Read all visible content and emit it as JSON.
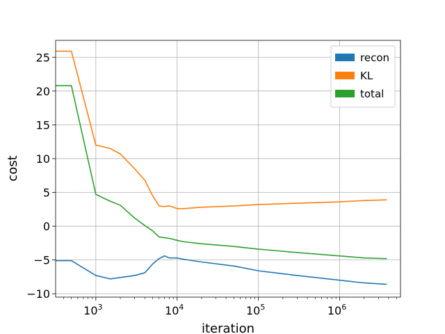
{
  "chart_data": {
    "type": "line",
    "title": "",
    "xlabel": "iteration",
    "ylabel": "cost",
    "xscale": "log",
    "xlim": [
      320,
      5600000
    ],
    "ylim": [
      -10.5,
      27.5
    ],
    "x_ticks": [
      {
        "value": 1000,
        "base": "10",
        "exp": "3"
      },
      {
        "value": 10000,
        "base": "10",
        "exp": "4"
      },
      {
        "value": 100000,
        "base": "10",
        "exp": "5"
      },
      {
        "value": 1000000,
        "base": "10",
        "exp": "6"
      }
    ],
    "y_ticks": [
      {
        "value": -10,
        "label": "−10"
      },
      {
        "value": -5,
        "label": "−5"
      },
      {
        "value": 0,
        "label": "0"
      },
      {
        "value": 5,
        "label": "5"
      },
      {
        "value": 10,
        "label": "10"
      },
      {
        "value": 15,
        "label": "15"
      },
      {
        "value": 20,
        "label": "20"
      },
      {
        "value": 25,
        "label": "25"
      }
    ],
    "grid": true,
    "legend_position": "top-right",
    "series": [
      {
        "name": "recon",
        "color": "#1f77b4",
        "x": [
          320,
          500,
          1000,
          1500,
          2000,
          3000,
          4000,
          5000,
          6000,
          7000,
          8000,
          10000,
          12000,
          20000,
          50000,
          100000,
          300000,
          1000000,
          2000000,
          3800000
        ],
        "y": [
          -5.1,
          -5.1,
          -7.3,
          -7.8,
          -7.6,
          -7.3,
          -6.9,
          -5.6,
          -4.8,
          -4.4,
          -4.7,
          -4.7,
          -4.9,
          -5.3,
          -5.9,
          -6.6,
          -7.3,
          -8.0,
          -8.4,
          -8.6
        ]
      },
      {
        "name": "KL",
        "color": "#ff7f0e",
        "x": [
          320,
          500,
          1000,
          1500,
          2000,
          3000,
          4000,
          5000,
          6000,
          7000,
          8000,
          10000,
          12000,
          20000,
          50000,
          100000,
          300000,
          1000000,
          2000000,
          3800000
        ],
        "y": [
          25.9,
          25.9,
          12.0,
          11.5,
          10.7,
          8.5,
          6.8,
          4.5,
          3.0,
          2.9,
          3.0,
          2.6,
          2.6,
          2.8,
          3.0,
          3.2,
          3.4,
          3.6,
          3.8,
          3.9
        ]
      },
      {
        "name": "total",
        "color": "#2ca02c",
        "x": [
          320,
          500,
          1000,
          1500,
          2000,
          3000,
          4000,
          5000,
          6000,
          7000,
          8000,
          10000,
          12000,
          20000,
          50000,
          100000,
          300000,
          1000000,
          2000000,
          3800000
        ],
        "y": [
          20.8,
          20.8,
          4.7,
          3.7,
          3.1,
          1.2,
          0.1,
          -0.7,
          -1.6,
          -1.7,
          -1.8,
          -2.1,
          -2.3,
          -2.6,
          -3.0,
          -3.4,
          -3.9,
          -4.4,
          -4.7,
          -4.8
        ]
      }
    ]
  }
}
